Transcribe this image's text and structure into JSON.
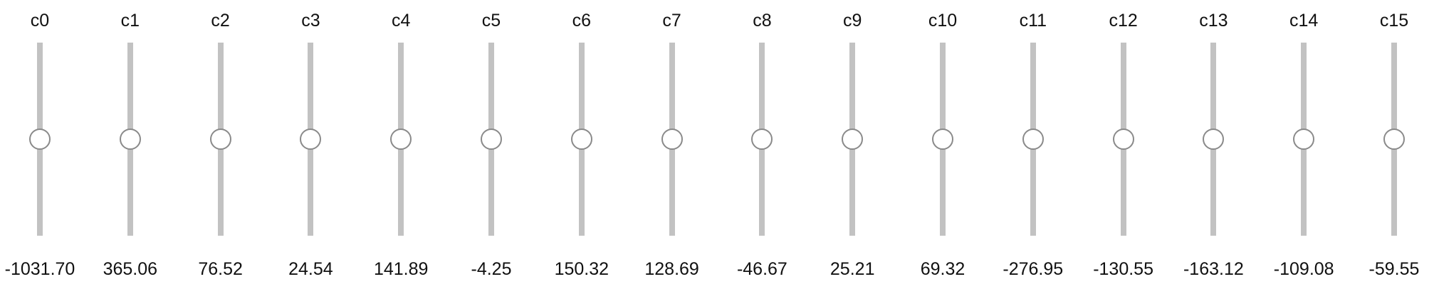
{
  "sliders": [
    {
      "label": "c0",
      "value": "-1031.70",
      "level": 0.5
    },
    {
      "label": "c1",
      "value": "365.06",
      "level": 0.5
    },
    {
      "label": "c2",
      "value": "76.52",
      "level": 0.5
    },
    {
      "label": "c3",
      "value": "24.54",
      "level": 0.5
    },
    {
      "label": "c4",
      "value": "141.89",
      "level": 0.5
    },
    {
      "label": "c5",
      "value": "-4.25",
      "level": 0.5
    },
    {
      "label": "c6",
      "value": "150.32",
      "level": 0.5
    },
    {
      "label": "c7",
      "value": "128.69",
      "level": 0.5
    },
    {
      "label": "c8",
      "value": "-46.67",
      "level": 0.5
    },
    {
      "label": "c9",
      "value": "25.21",
      "level": 0.5
    },
    {
      "label": "c10",
      "value": "69.32",
      "level": 0.5
    },
    {
      "label": "c11",
      "value": "-276.95",
      "level": 0.5
    },
    {
      "label": "c12",
      "value": "-130.55",
      "level": 0.5
    },
    {
      "label": "c13",
      "value": "-163.12",
      "level": 0.5
    },
    {
      "label": "c14",
      "value": "-109.08",
      "level": 0.5
    },
    {
      "label": "c15",
      "value": "-59.55",
      "level": 0.5
    }
  ],
  "colors": {
    "track": "#c2c2c2",
    "thumb_border": "#8a8a8a",
    "thumb_fill": "#ffffff",
    "text": "#111111"
  }
}
